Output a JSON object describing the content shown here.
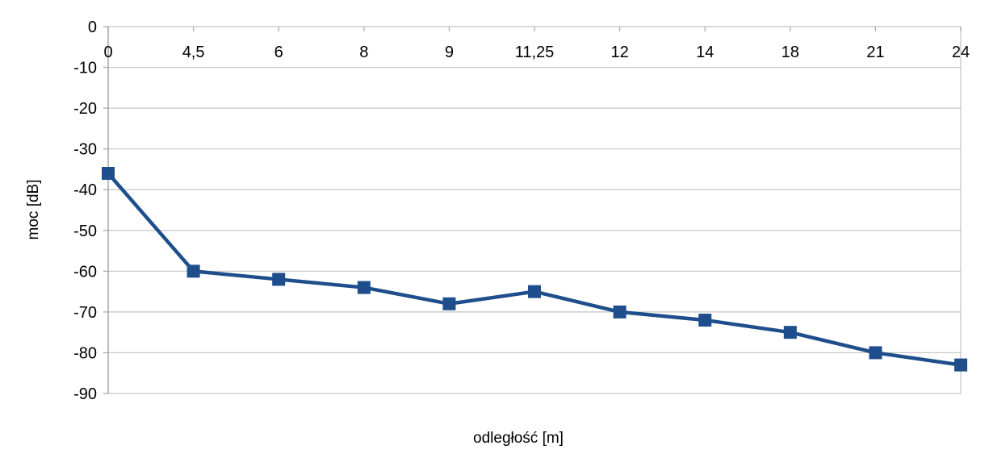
{
  "chart_data": {
    "type": "line",
    "title": "",
    "xlabel": "odległość [m]",
    "ylabel": "moc [dB]",
    "categories": [
      "0",
      "4,5",
      "6",
      "8",
      "9",
      "11,25",
      "12",
      "14",
      "18",
      "21",
      "24"
    ],
    "series": [
      {
        "values": [
          -36,
          -60,
          -62,
          -64,
          -68,
          -65,
          -70,
          -72,
          -75,
          -80,
          -83
        ]
      }
    ],
    "ylim": [
      -90,
      0
    ],
    "yticks": [
      0,
      -10,
      -20,
      -30,
      -40,
      -50,
      -60,
      -70,
      -80,
      -90
    ],
    "ytick_labels": [
      "0",
      "-10",
      "-20",
      "-30",
      "-40",
      "-50",
      "-60",
      "-70",
      "-80",
      "-90"
    ],
    "x_axis_labels_position": "top",
    "grid": true,
    "legend": "none",
    "colors": {
      "series": "#1f4e8c",
      "grid": "#c4c4c4",
      "axis": "#a6a6a6"
    }
  }
}
